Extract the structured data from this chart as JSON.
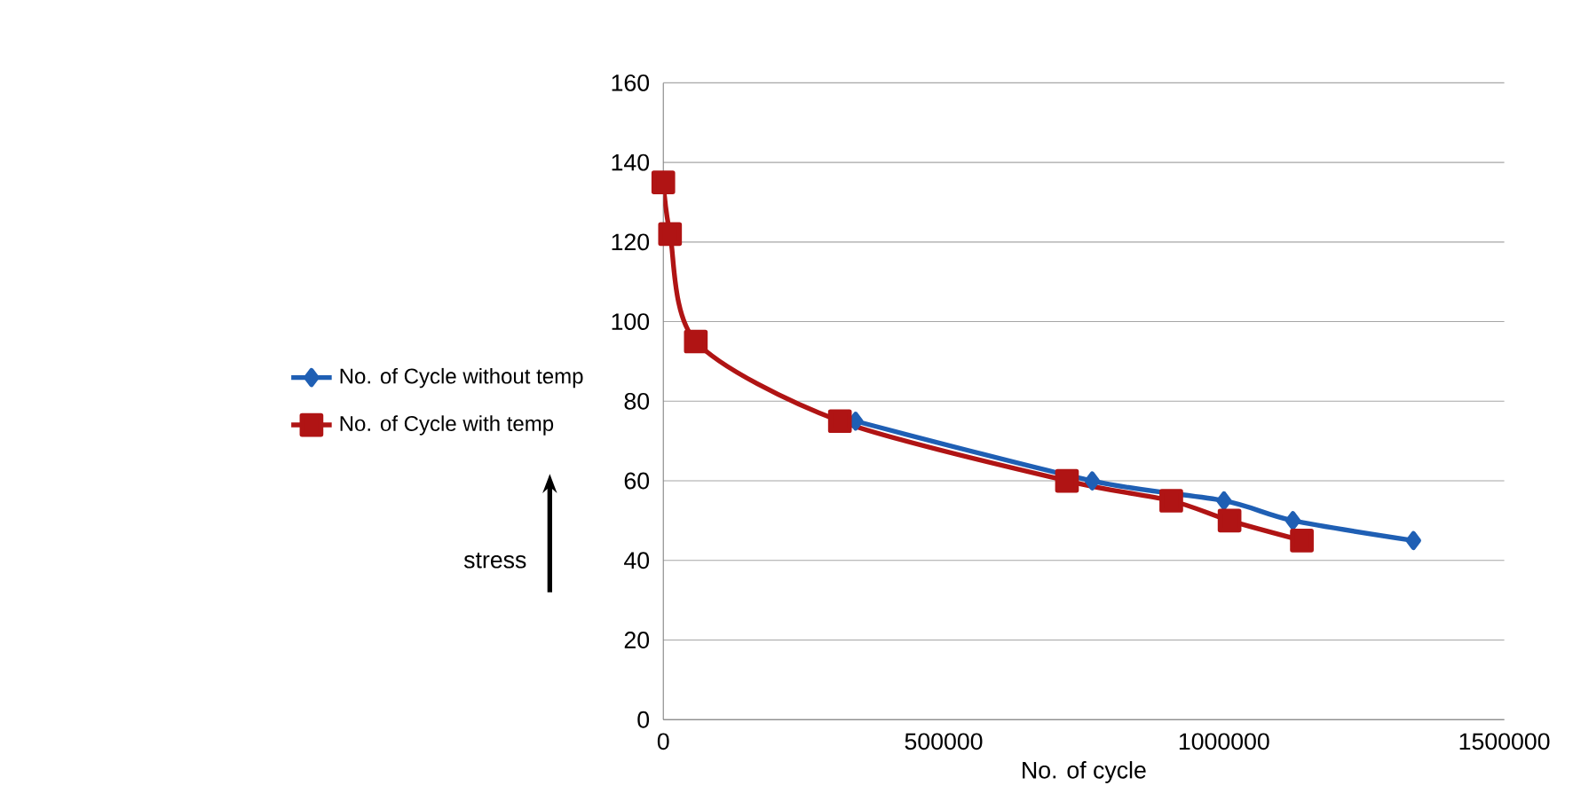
{
  "chart_data": {
    "type": "line",
    "xlabel": "No. of cycle",
    "ylabel": "stress",
    "xlim": [
      0,
      1500000
    ],
    "xticks": [
      0,
      500000,
      1000000,
      1500000
    ],
    "ylim": [
      0,
      160
    ],
    "yticks": [
      0,
      20,
      40,
      60,
      80,
      100,
      120,
      140,
      160
    ],
    "grid": "y",
    "legend": "left",
    "series": [
      {
        "name": "No. of Cycle without temp",
        "color": "#1f5fb4",
        "marker": "diamond",
        "x": [
          343000,
          765000,
          1000000,
          1123000,
          1338000
        ],
        "values": [
          75,
          60,
          55,
          50,
          45
        ]
      },
      {
        "name": "No. of Cycle with temp",
        "color": "#b01414",
        "marker": "square",
        "x": [
          0,
          12000,
          58000,
          315000,
          720000,
          906000,
          1010000,
          1139000
        ],
        "values": [
          135,
          122,
          95,
          75,
          60,
          55,
          50,
          45
        ]
      }
    ]
  }
}
